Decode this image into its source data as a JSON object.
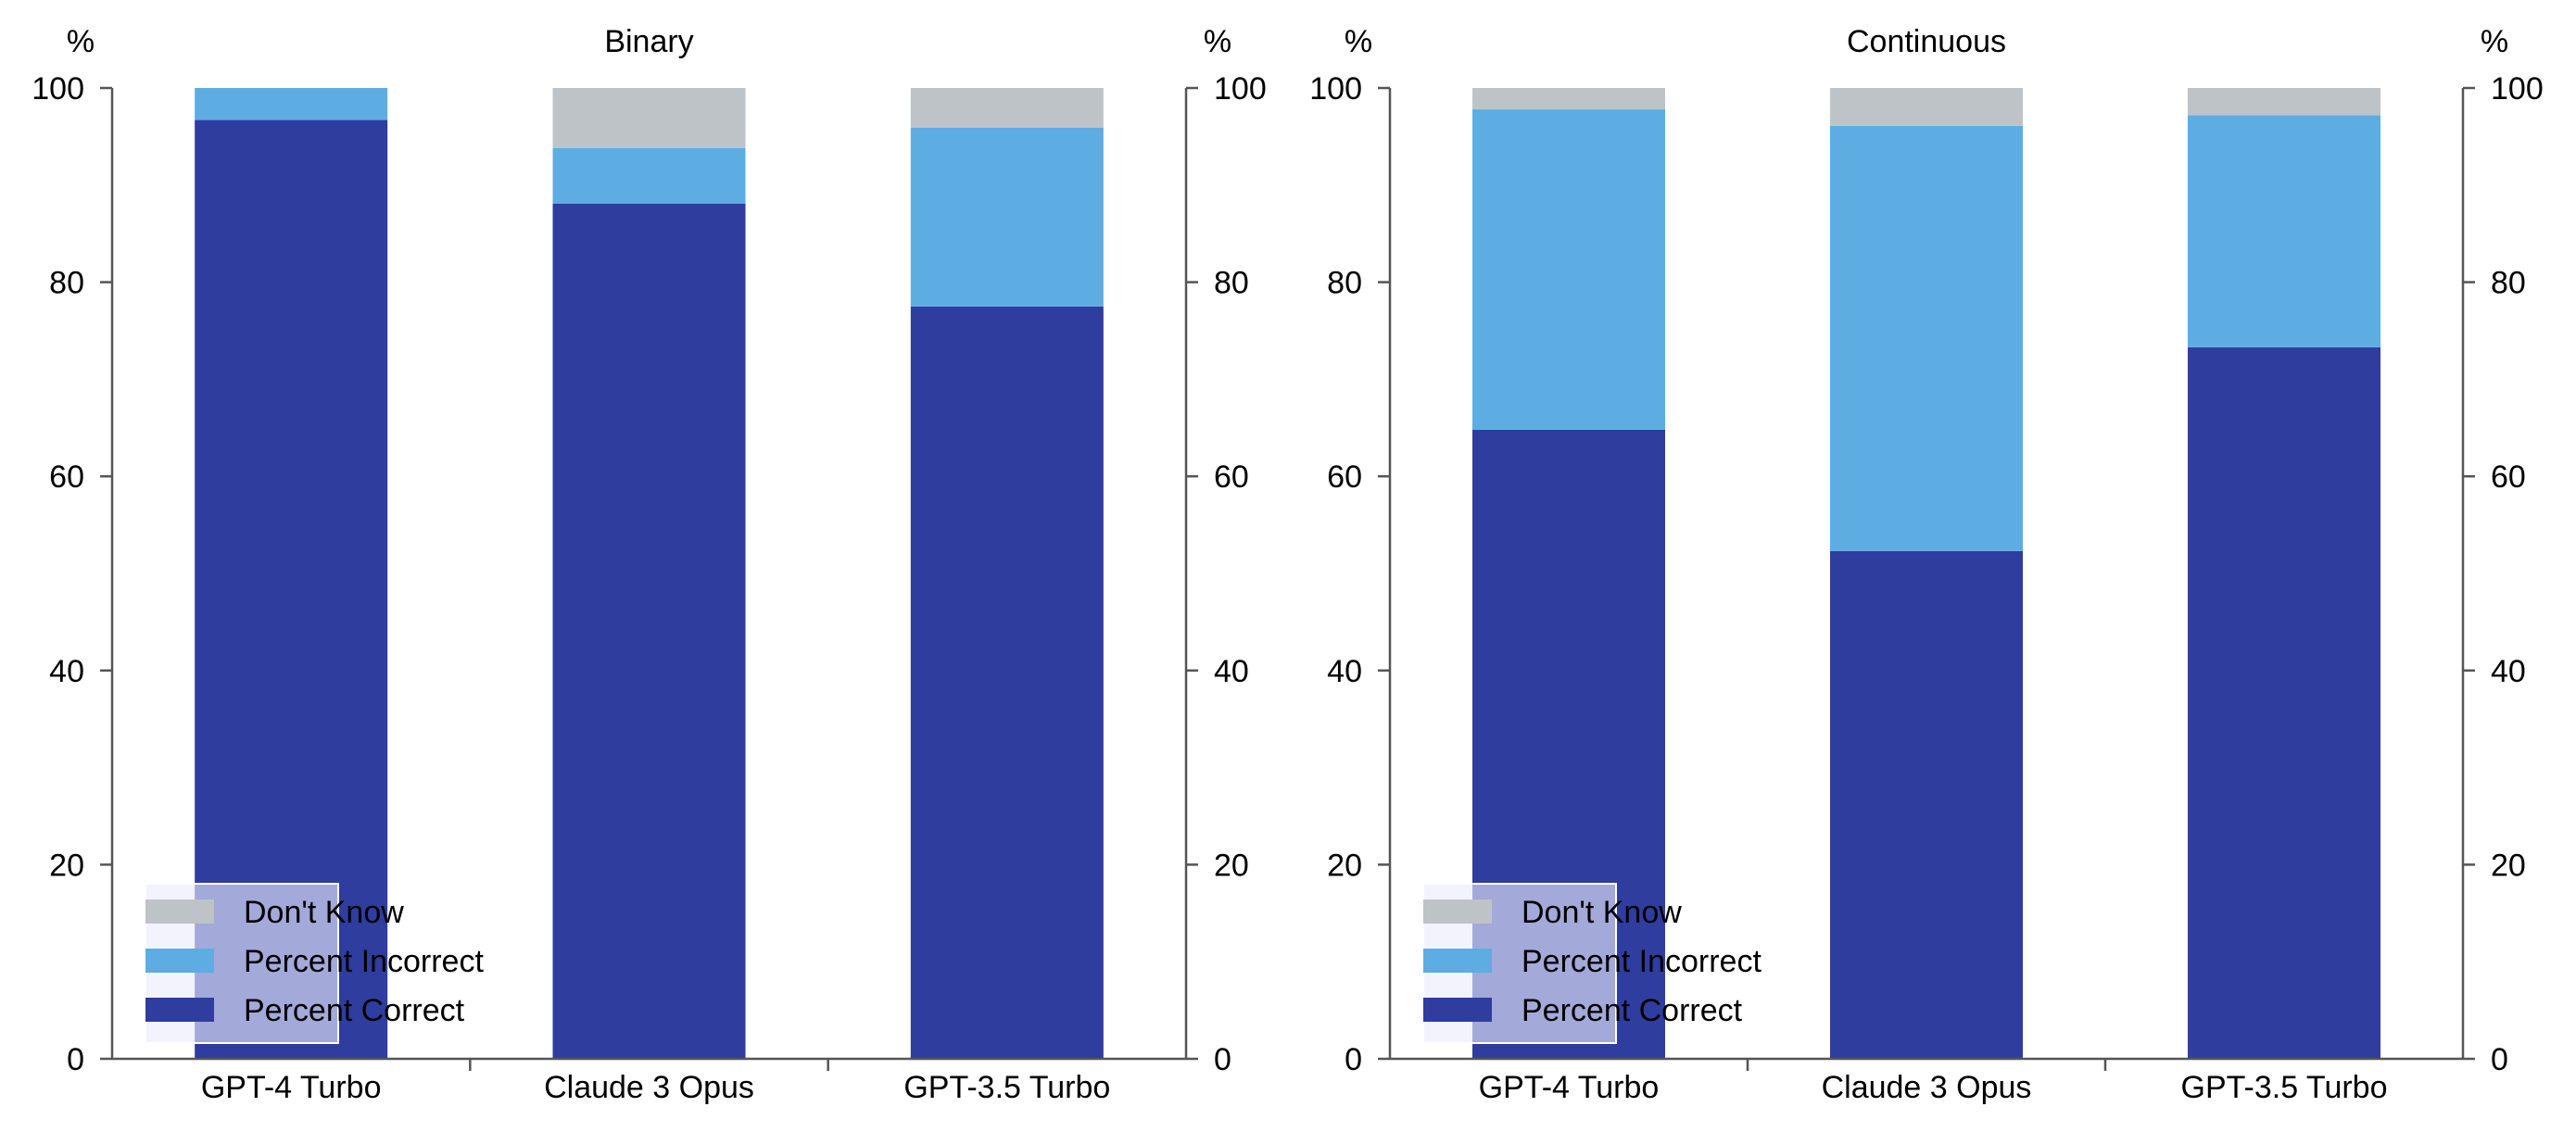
{
  "colors": {
    "dont_know": "#BEC3C7",
    "incorrect": "#5DADE2",
    "correct": "#2E3D9E",
    "axis": "#555555",
    "legend_box": "rgba(235,235,252,0.62)"
  },
  "chart_data": [
    {
      "type": "bar",
      "stacked": true,
      "title": "Binary",
      "ylabel_left": "%",
      "ylabel_right": "%",
      "ylim": [
        0,
        100
      ],
      "yticks": [
        "0",
        "20",
        "40",
        "60",
        "80",
        "100"
      ],
      "categories": [
        "GPT-4 Turbo",
        "Claude 3 Opus",
        "GPT-3.5 Turbo"
      ],
      "series": [
        {
          "name": "Percent Correct",
          "key": "correct",
          "values": [
            96.7,
            88.1,
            77.5
          ]
        },
        {
          "name": "Percent Incorrect",
          "key": "incorrect",
          "values": [
            3.3,
            5.7,
            18.4
          ]
        },
        {
          "name": "Don't Know",
          "key": "dont_know",
          "values": [
            0.0,
            6.2,
            4.1
          ]
        }
      ],
      "legend": {
        "location": "lower-left",
        "entries": [
          "Don't Know",
          "Percent Incorrect",
          "Percent Correct"
        ]
      }
    },
    {
      "type": "bar",
      "stacked": true,
      "title": "Continuous",
      "ylabel_left": "%",
      "ylabel_right": "%",
      "ylim": [
        0,
        100
      ],
      "yticks": [
        "0",
        "20",
        "40",
        "60",
        "80",
        "100"
      ],
      "categories": [
        "GPT-4 Turbo",
        "Claude 3 Opus",
        "GPT-3.5 Turbo"
      ],
      "series": [
        {
          "name": "Percent Correct",
          "key": "correct",
          "values": [
            64.8,
            52.3,
            73.3
          ]
        },
        {
          "name": "Percent Incorrect",
          "key": "incorrect",
          "values": [
            33.0,
            43.8,
            23.9
          ]
        },
        {
          "name": "Don't Know",
          "key": "dont_know",
          "values": [
            2.2,
            3.9,
            2.8
          ]
        }
      ],
      "legend": {
        "location": "lower-left",
        "entries": [
          "Don't Know",
          "Percent Incorrect",
          "Percent Correct"
        ]
      }
    }
  ]
}
